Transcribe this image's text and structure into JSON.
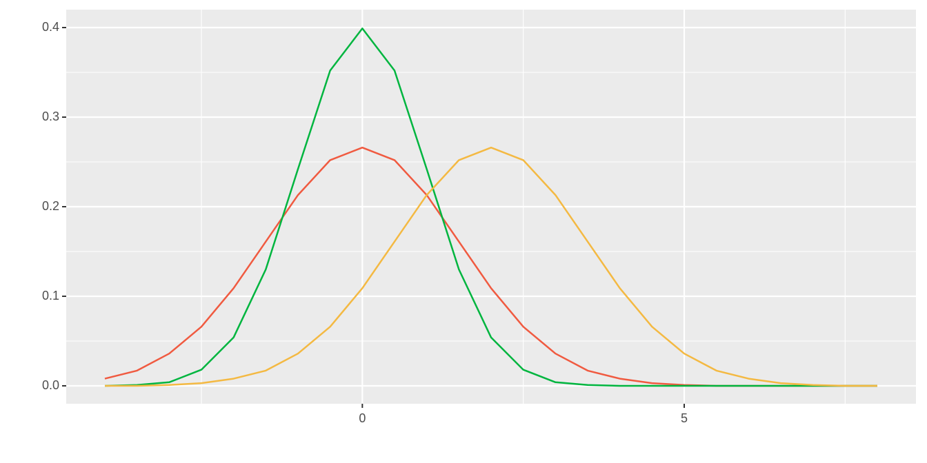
{
  "chart_data": {
    "type": "line",
    "x": [
      -4,
      -3.5,
      -3,
      -2.5,
      -2,
      -1.5,
      -1,
      -0.5,
      0,
      0.5,
      1,
      1.5,
      2,
      2.5,
      3,
      3.5,
      4,
      4.5,
      5,
      5.5,
      6,
      6.5,
      7,
      7.5,
      8
    ],
    "series": [
      {
        "color": "#f05a40",
        "values": [
          0.008,
          0.017,
          0.036,
          0.066,
          0.109,
          0.161,
          0.213,
          0.252,
          0.266,
          0.252,
          0.213,
          0.161,
          0.109,
          0.066,
          0.036,
          0.017,
          0.008,
          0.003,
          0.001,
          0,
          0,
          0,
          0,
          0,
          0
        ]
      },
      {
        "color": "#00b53f",
        "values": [
          0,
          0.001,
          0.004,
          0.018,
          0.054,
          0.13,
          0.242,
          0.352,
          0.399,
          0.352,
          0.242,
          0.13,
          0.054,
          0.018,
          0.004,
          0.001,
          0,
          0,
          0,
          0,
          0,
          0,
          0,
          0,
          0
        ]
      },
      {
        "color": "#f4b942",
        "values": [
          0,
          0,
          0.001,
          0.003,
          0.008,
          0.017,
          0.036,
          0.066,
          0.109,
          0.161,
          0.213,
          0.252,
          0.266,
          0.252,
          0.213,
          0.161,
          0.109,
          0.066,
          0.036,
          0.017,
          0.008,
          0.003,
          0.001,
          0,
          0
        ]
      }
    ],
    "xlim": [
      -4.6,
      8.6
    ],
    "xticks": [
      0,
      5
    ],
    "xminor": [
      -2.5,
      2.5,
      7.5
    ],
    "ylim": [
      -0.02,
      0.42
    ],
    "yticks": [
      {
        "value": 0,
        "label": "0.0"
      },
      0.1,
      0.2,
      0.3,
      0.4
    ],
    "yminor": [
      0.05,
      0.15,
      0.25,
      0.35
    ],
    "grid": true
  }
}
